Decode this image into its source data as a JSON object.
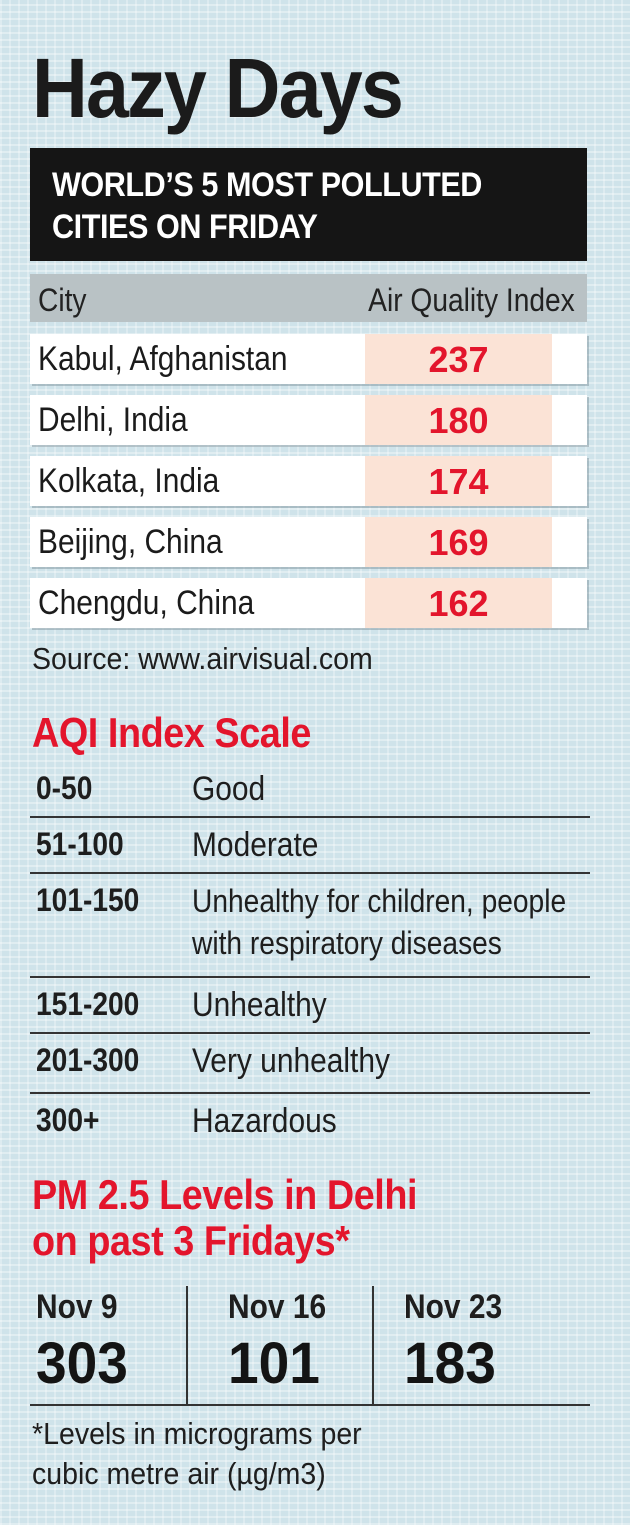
{
  "title": "Hazy Days",
  "banner": {
    "line1": "WORLD’S 5 MOST POLLUTED",
    "line2": "CITIES ON FRIDAY"
  },
  "chart_data": [
    {
      "type": "table",
      "title": "WORLD’S 5 MOST POLLUTED CITIES ON FRIDAY",
      "columns": [
        "City",
        "Air Quality Index"
      ],
      "rows": [
        {
          "city": "Kabul, Afghanistan",
          "aqi": "237"
        },
        {
          "city": "Delhi, India",
          "aqi": "180"
        },
        {
          "city": "Kolkata, India",
          "aqi": "174"
        },
        {
          "city": "Beijing, China",
          "aqi": "169"
        },
        {
          "city": "Chengdu, China",
          "aqi": "162"
        }
      ],
      "source": "Source: www.airvisual.com"
    },
    {
      "type": "table",
      "title": "AQI Index Scale",
      "rows": [
        {
          "range": "0-50",
          "label": "Good"
        },
        {
          "range": "51-100",
          "label": "Moderate"
        },
        {
          "range": "101-150",
          "label": "Unhealthy for children, people",
          "label2": "with respiratory diseases"
        },
        {
          "range": "151-200",
          "label": "Unhealthy"
        },
        {
          "range": "201-300",
          "label": "Very unhealthy"
        },
        {
          "range": "300+",
          "label": "Hazardous"
        }
      ]
    },
    {
      "type": "table",
      "title_line1": "PM 2.5 Levels in Delhi",
      "title_line2": "on past 3 Fridays*",
      "items": [
        {
          "date": "Nov 9",
          "value": "303"
        },
        {
          "date": "Nov 16",
          "value": "101"
        },
        {
          "date": "Nov 23",
          "value": "183"
        }
      ],
      "footnote_line1": "*Levels in micrograms per",
      "footnote_line2": "cubic metre air (µg/m3)"
    }
  ],
  "colors": {
    "accent_red": "#e3152c",
    "banner_bg": "#151515",
    "value_cell_bg": "#fbe3d6"
  }
}
